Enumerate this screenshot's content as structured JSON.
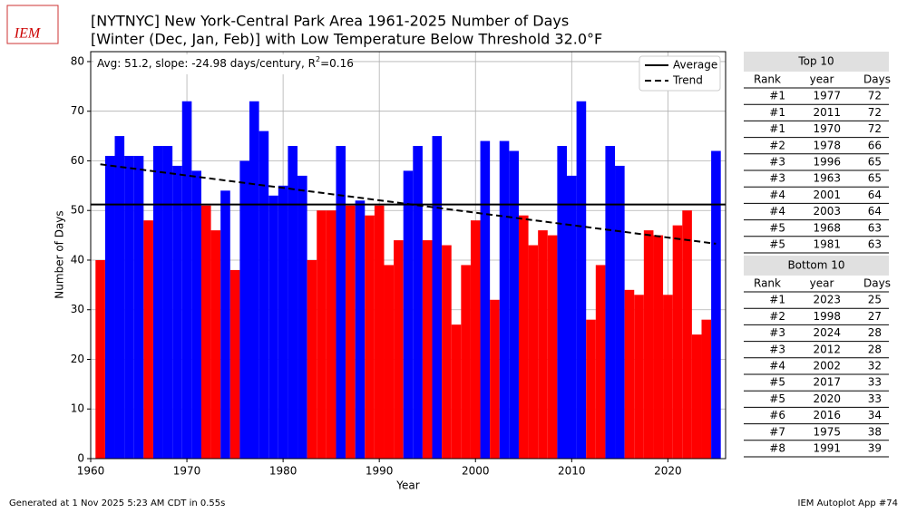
{
  "chart_data": {
    "type": "bar",
    "logo": "IEM",
    "title": "[NYTNYC] New York-Central Park Area 1961-2025 Number of Days",
    "subtitle": "[Winter (Dec, Jan, Feb)] with Low Temperature Below Threshold 32.0°F",
    "annotation": [
      "Avg: 51.2, slope: -24.98 days/century, R",
      "2",
      "=0.16"
    ],
    "xlabel": "Year",
    "ylabel": "Number of Days",
    "x": [
      1961,
      1962,
      1963,
      1964,
      1965,
      1966,
      1967,
      1968,
      1969,
      1970,
      1971,
      1972,
      1973,
      1974,
      1975,
      1976,
      1977,
      1978,
      1979,
      1980,
      1981,
      1982,
      1983,
      1984,
      1985,
      1986,
      1987,
      1988,
      1989,
      1990,
      1991,
      1992,
      1993,
      1994,
      1995,
      1996,
      1997,
      1998,
      1999,
      2000,
      2001,
      2002,
      2003,
      2004,
      2005,
      2006,
      2007,
      2008,
      2009,
      2010,
      2011,
      2012,
      2013,
      2014,
      2015,
      2016,
      2017,
      2018,
      2019,
      2020,
      2021,
      2022,
      2023,
      2024,
      2025
    ],
    "values": [
      40,
      61,
      65,
      61,
      61,
      48,
      63,
      63,
      59,
      72,
      58,
      51,
      46,
      54,
      38,
      60,
      72,
      66,
      53,
      55,
      63,
      57,
      40,
      50,
      50,
      63,
      51,
      52,
      49,
      51,
      39,
      44,
      58,
      63,
      44,
      65,
      43,
      27,
      39,
      48,
      64,
      32,
      64,
      62,
      49,
      43,
      46,
      45,
      63,
      57,
      72,
      28,
      39,
      63,
      59,
      34,
      33,
      46,
      45,
      33,
      47,
      50,
      25,
      28,
      62
    ],
    "above_color": "#0000ff",
    "below_color": "#ff0000",
    "average": {
      "name": "Average",
      "value": 51.2,
      "color": "#000000"
    },
    "trend": {
      "name": "Trend",
      "x": [
        1961,
        2025
      ],
      "values": [
        59.3,
        43.3
      ],
      "color": "#000000"
    },
    "legend": "upper right",
    "xlim": [
      1960,
      2026
    ],
    "xticks": [
      1960,
      1970,
      1980,
      1990,
      2000,
      2010,
      2020
    ],
    "ylim": [
      0,
      82
    ],
    "yticks": [
      0,
      10,
      20,
      30,
      40,
      50,
      60,
      70,
      80
    ],
    "grid": true
  },
  "tables": [
    {
      "title": "Top 10",
      "columns": [
        "Rank",
        "year",
        "Days"
      ],
      "rows": [
        [
          "#1",
          1977,
          72
        ],
        [
          "#1",
          2011,
          72
        ],
        [
          "#1",
          1970,
          72
        ],
        [
          "#2",
          1978,
          66
        ],
        [
          "#3",
          1996,
          65
        ],
        [
          "#3",
          1963,
          65
        ],
        [
          "#4",
          2001,
          64
        ],
        [
          "#4",
          2003,
          64
        ],
        [
          "#5",
          1968,
          63
        ],
        [
          "#5",
          1981,
          63
        ]
      ]
    },
    {
      "title": "Bottom 10",
      "columns": [
        "Rank",
        "year",
        "Days"
      ],
      "rows": [
        [
          "#1",
          2023,
          25
        ],
        [
          "#2",
          1998,
          27
        ],
        [
          "#3",
          2024,
          28
        ],
        [
          "#3",
          2012,
          28
        ],
        [
          "#4",
          2002,
          32
        ],
        [
          "#5",
          2017,
          33
        ],
        [
          "#5",
          2020,
          33
        ],
        [
          "#6",
          2016,
          34
        ],
        [
          "#7",
          1975,
          38
        ],
        [
          "#8",
          1991,
          39
        ]
      ]
    }
  ],
  "footer": {
    "left": "Generated at 1 Nov 2025 5:23 AM CDT in 0.55s",
    "right": "IEM Autoplot App #74"
  }
}
